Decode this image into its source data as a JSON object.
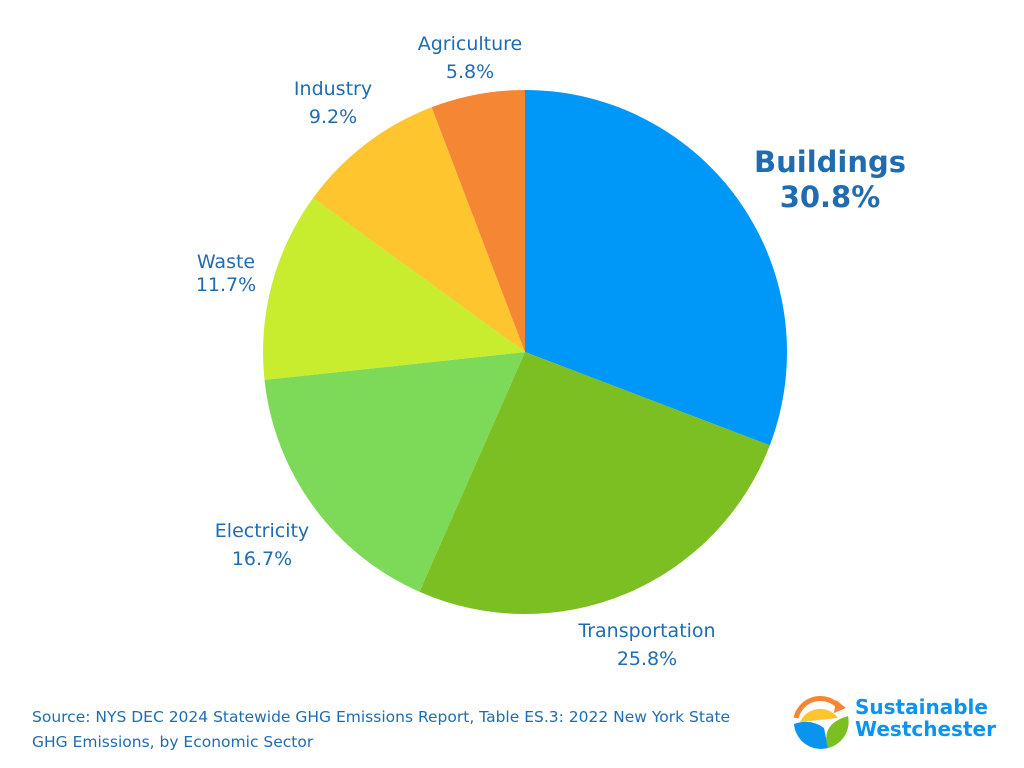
{
  "chart_data": {
    "type": "pie",
    "title": "",
    "start_angle": "12 o'clock",
    "direction": "clockwise",
    "slices": [
      {
        "label": "Buildings",
        "value": 30.8,
        "value_label": "30.8%",
        "color": "#0098f8",
        "emphasized": true
      },
      {
        "label": "Transportation",
        "value": 25.8,
        "value_label": "25.8%",
        "color": "#7bbf22"
      },
      {
        "label": "Electricity",
        "value": 16.7,
        "value_label": "16.7%",
        "color": "#7dda58"
      },
      {
        "label": "Waste",
        "value": 11.7,
        "value_label": "11.7%",
        "color": "#c8ec2e"
      },
      {
        "label": "Industry",
        "value": 9.2,
        "value_label": "9.2%",
        "color": "#ffc52e"
      },
      {
        "label": "Agriculture",
        "value": 5.8,
        "value_label": "5.8%",
        "color": "#f58634"
      }
    ],
    "label_color": "#1f6cb0"
  },
  "source": "Source: NYS DEC 2024 Statewide GHG Emissions Report, Table ES.3: 2022 New York State GHG Emissions, by Economic Sector",
  "logo": {
    "line1": "Sustainable",
    "line2": "Westchester",
    "color": "#0a93ef"
  }
}
